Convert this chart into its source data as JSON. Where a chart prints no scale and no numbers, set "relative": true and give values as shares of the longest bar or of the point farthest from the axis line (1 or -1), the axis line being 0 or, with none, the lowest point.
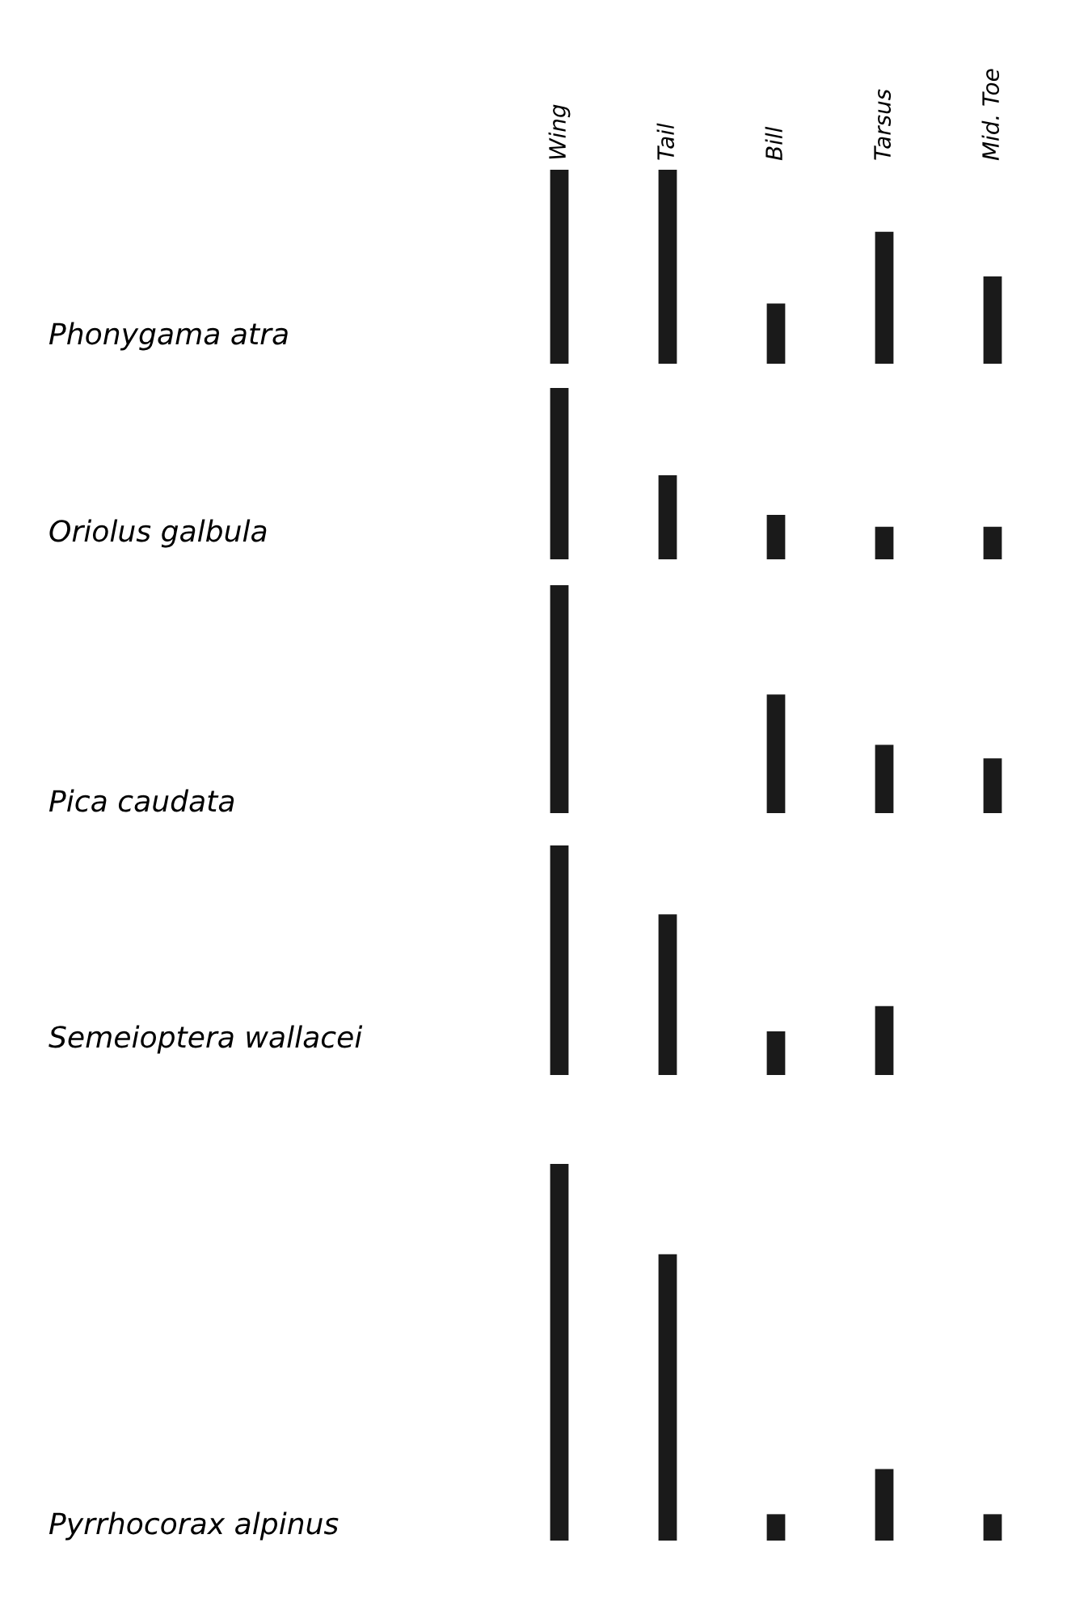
{
  "chart_data": [
    {
      "type": "bar",
      "relative": true,
      "ylabel": "Phonygama atra",
      "categories": [
        "Wing",
        "Tail",
        "Bill",
        "Tarsus",
        "Mid. Toe"
      ],
      "values": [
        1,
        1,
        0.31,
        0.68,
        0.45
      ],
      "color": "#1a1a1a",
      "tick_labels": "x"
    },
    {
      "type": "bar",
      "relative": true,
      "ylabel": "Oriolus galbula",
      "categories": [
        null,
        null,
        null,
        null,
        null
      ],
      "values": [
        1,
        0.49,
        0.26,
        0.19,
        0.19
      ],
      "color": "#1a1a1a"
    },
    {
      "type": "bar",
      "relative": true,
      "ylabel": "Pica caudata",
      "categories": [
        null,
        null,
        null,
        null,
        null
      ],
      "values": [
        1,
        null,
        0.52,
        0.3,
        0.24
      ],
      "color": "#1a1a1a"
    },
    {
      "type": "bar",
      "relative": true,
      "ylabel": "Semeioptera wallacei",
      "categories": [
        null,
        null,
        null,
        null,
        null
      ],
      "values": [
        1,
        0.7,
        0.19,
        0.3,
        null
      ],
      "color": "#1a1a1a"
    },
    {
      "type": "bar",
      "relative": true,
      "ylabel": "Pyrrhocorax alpinus",
      "categories": [
        null,
        null,
        null,
        null,
        null
      ],
      "values": [
        1,
        0.76,
        0.07,
        0.19,
        0.07
      ],
      "color": "#1a1a1a"
    }
  ]
}
